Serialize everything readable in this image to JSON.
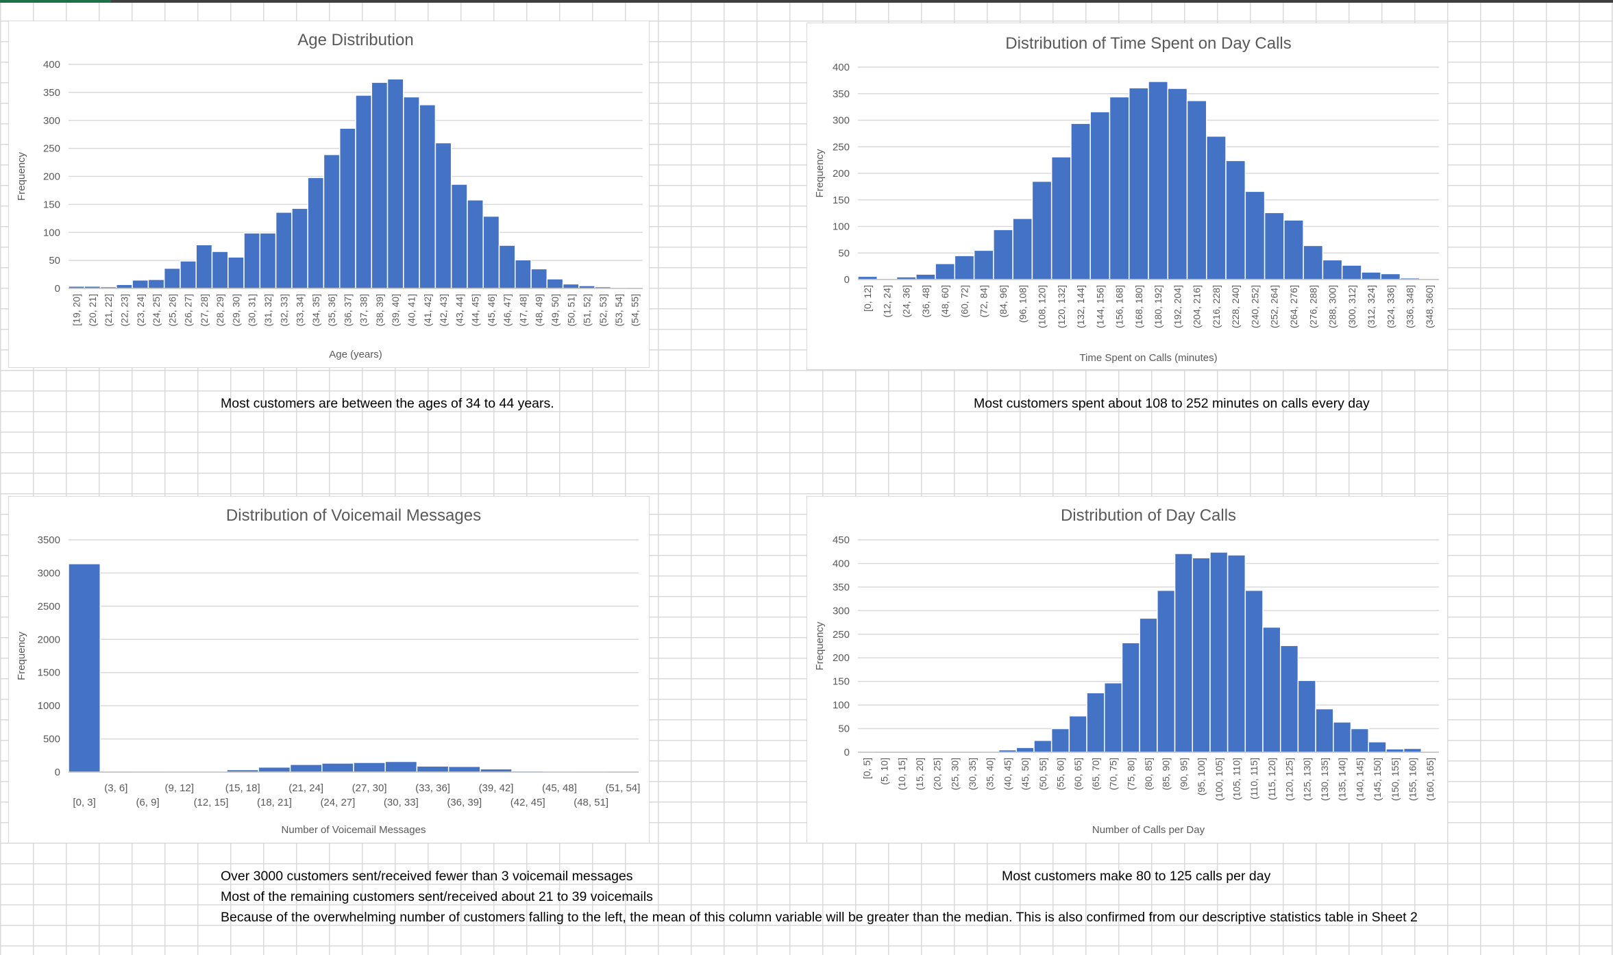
{
  "chart_data": [
    {
      "id": "age",
      "type": "bar",
      "title": "Age Distribution",
      "xlabel": "Age (years)",
      "ylabel": "Frequency",
      "ylim": [
        0,
        400
      ],
      "yticks": [
        0,
        50,
        100,
        150,
        200,
        250,
        300,
        350,
        400
      ],
      "grid": true,
      "legend": "none",
      "bar_color": "#4472c4",
      "label_mode": "rotated",
      "categories": [
        "[19, 20]",
        "(20, 21]",
        "(21, 22]",
        "(22, 23]",
        "(23, 24]",
        "(24, 25]",
        "(25, 26]",
        "(26, 27]",
        "(27, 28]",
        "(28, 29]",
        "(29, 30]",
        "(30, 31]",
        "(31, 32]",
        "(32, 33]",
        "(33, 34]",
        "(34, 35]",
        "(35, 36]",
        "(36, 37]",
        "(37, 38]",
        "(38, 39]",
        "(39, 40]",
        "(40, 41]",
        "(41, 42]",
        "(42, 43]",
        "(43, 44]",
        "(44, 45]",
        "(45, 46]",
        "(46, 47]",
        "(47, 48]",
        "(48, 49]",
        "(49, 50]",
        "(50, 51]",
        "(51, 52]",
        "(52, 53]",
        "(53, 54]",
        "(54, 55]"
      ],
      "values": [
        4,
        4,
        3,
        7,
        15,
        16,
        36,
        49,
        78,
        66,
        56,
        99,
        99,
        136,
        143,
        198,
        239,
        286,
        345,
        368,
        374,
        342,
        328,
        260,
        186,
        158,
        129,
        77,
        51,
        35,
        17,
        8,
        5,
        3,
        1,
        0
      ]
    },
    {
      "id": "day-calls-time",
      "type": "bar",
      "title": "Distribution of Time Spent on Day Calls",
      "xlabel": "Time Spent on Calls (minutes)",
      "ylabel": "Frequency",
      "ylim": [
        0,
        400
      ],
      "yticks": [
        0,
        50,
        100,
        150,
        200,
        250,
        300,
        350,
        400
      ],
      "grid": true,
      "legend": "none",
      "bar_color": "#4472c4",
      "label_mode": "rotated",
      "categories": [
        "[0, 12]",
        "(12, 24]",
        "(24, 36]",
        "(36, 48]",
        "(48, 60]",
        "(60, 72]",
        "(72, 84]",
        "(84, 96]",
        "(96, 108]",
        "(108, 120]",
        "(120, 132]",
        "(132, 144]",
        "(144, 156]",
        "(156, 168]",
        "(168, 180]",
        "(180, 192]",
        "(192, 204]",
        "(204, 216]",
        "(216, 228]",
        "(228, 240]",
        "(240, 252]",
        "(252, 264]",
        "(264, 276]",
        "(276, 288]",
        "(288, 300]",
        "(300, 312]",
        "(312, 324]",
        "(324, 336]",
        "(336, 348]",
        "(348, 360]"
      ],
      "values": [
        6,
        1,
        5,
        10,
        30,
        45,
        55,
        94,
        115,
        185,
        231,
        294,
        316,
        344,
        361,
        373,
        360,
        337,
        270,
        224,
        166,
        126,
        112,
        64,
        37,
        27,
        14,
        11,
        3,
        1
      ]
    },
    {
      "id": "voicemail",
      "type": "bar",
      "title": "Distribution of Voicemail Messages",
      "xlabel": "Number of Voicemail Messages",
      "ylabel": "Frequency",
      "ylim": [
        0,
        3500
      ],
      "yticks": [
        0,
        500,
        1000,
        1500,
        2000,
        2500,
        3000,
        3500
      ],
      "grid": true,
      "legend": "none",
      "bar_color": "#4472c4",
      "label_mode": "staggered",
      "categories": [
        "[0, 3]",
        "(3, 6]",
        "(6, 9]",
        "(9, 12]",
        "(12, 15]",
        "(15, 18]",
        "(18, 21]",
        "(21, 24]",
        "(24, 27]",
        "(27, 30]",
        "(30, 33]",
        "(33, 36]",
        "(36, 39]",
        "(39, 42]",
        "(42, 45]",
        "(45, 48]",
        "(48, 51]",
        "(51, 54]"
      ],
      "values": [
        3140,
        0,
        2,
        8,
        12,
        36,
        75,
        115,
        135,
        145,
        160,
        90,
        85,
        48,
        18,
        6,
        1,
        0
      ]
    },
    {
      "id": "day-calls",
      "type": "bar",
      "title": "Distribution of Day Calls",
      "xlabel": "Number of Calls per Day",
      "ylabel": "Frequency",
      "ylim": [
        0,
        450
      ],
      "yticks": [
        0,
        50,
        100,
        150,
        200,
        250,
        300,
        350,
        400,
        450
      ],
      "grid": true,
      "legend": "none",
      "bar_color": "#4472c4",
      "label_mode": "rotated",
      "categories": [
        "[0, 5]",
        "(5, 10]",
        "(10, 15]",
        "(15, 20]",
        "(20, 25]",
        "(25, 30]",
        "(30, 35]",
        "(35, 40]",
        "(40, 45]",
        "(45, 50]",
        "(50, 55]",
        "(55, 60]",
        "(60, 65]",
        "(65, 70]",
        "(70, 75]",
        "(75, 80]",
        "(80, 85]",
        "(85, 90]",
        "(90, 95]",
        "(95, 100]",
        "(100, 105]",
        "(105, 110]",
        "(110, 115]",
        "(115, 120]",
        "(120, 125]",
        "(125, 130]",
        "(130, 135]",
        "(135, 140]",
        "(140, 145]",
        "(145, 150]",
        "(150, 155]",
        "(155, 160]",
        "(160, 165]"
      ],
      "values": [
        1,
        0,
        0,
        0,
        0,
        0,
        0,
        2,
        5,
        10,
        25,
        50,
        77,
        126,
        147,
        232,
        284,
        343,
        421,
        412,
        424,
        418,
        343,
        265,
        226,
        152,
        92,
        64,
        50,
        22,
        7,
        8,
        0
      ]
    }
  ],
  "notes": {
    "age": "Most customers are between the ages of 34 to 44 years.",
    "time": "Most customers spent about 108 to 252 minutes on calls every day",
    "voicemail_1": "Over 3000 customers sent/received fewer than 3 voicemail messages",
    "voicemail_2": "Most of the remaining customers sent/received about 21 to 39 voicemails",
    "voicemail_3": "Because of the overwhelming number of customers falling to the left, the mean of this column variable will be greater than the median. This is also confirmed from our descriptive statistics table in Sheet 2",
    "calls": "Most customers make 80 to 125 calls per day"
  }
}
